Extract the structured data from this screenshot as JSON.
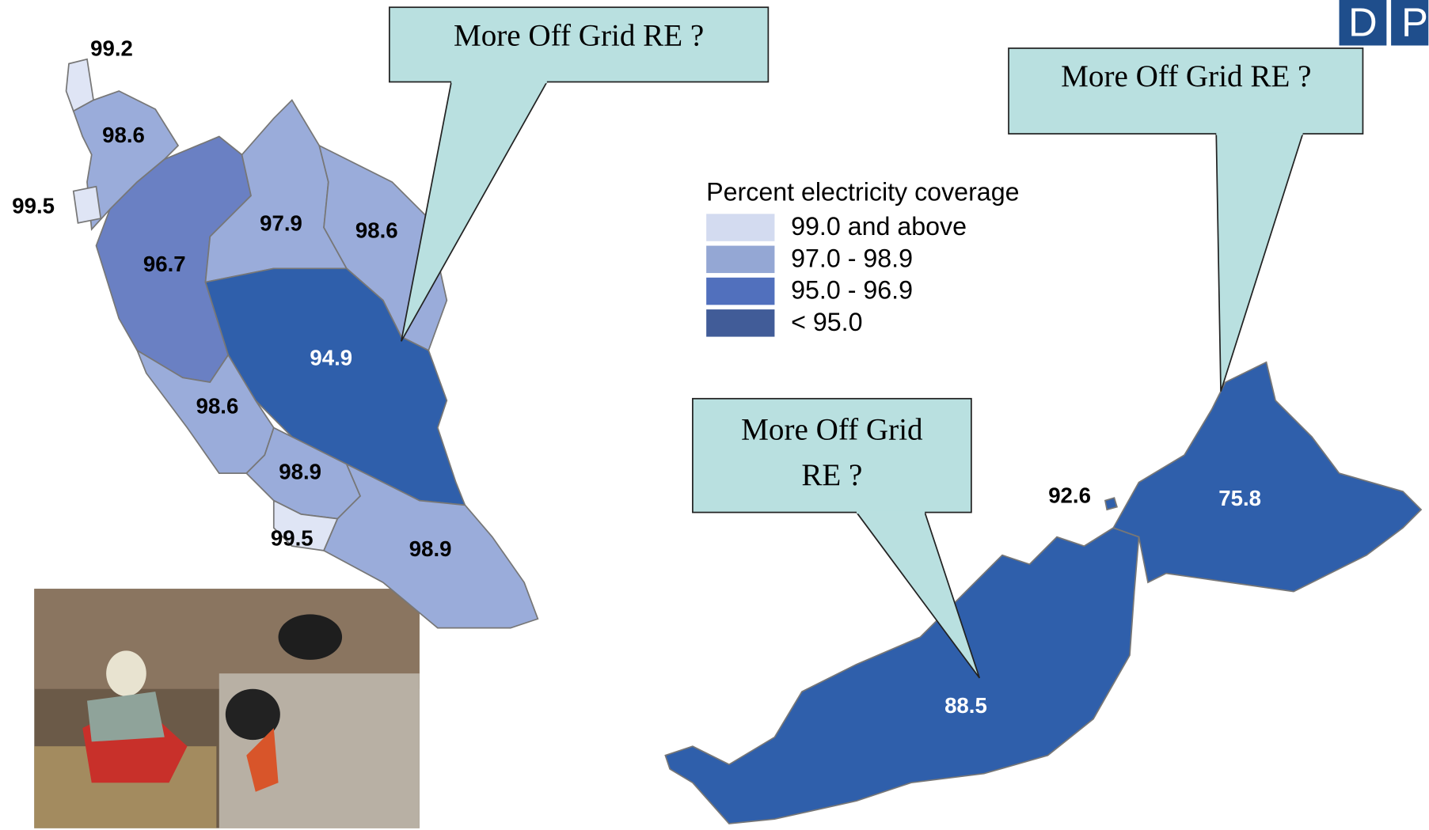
{
  "callouts": [
    "More Off Grid RE  ?",
    "More Off Grid RE  ?",
    "More Off Grid RE  ?"
  ],
  "legend": {
    "title": "Percent  electricity coverage",
    "items": [
      {
        "label": "99.0 and above",
        "color": "#d3dbf0"
      },
      {
        "label": "97.0 - 98.9",
        "color": "#94a7d4"
      },
      {
        "label": "95.0 - 96.9",
        "color": "#5170bd"
      },
      {
        "label": "< 95.0",
        "color": "#415c98"
      }
    ]
  },
  "logo": [
    "D",
    "P"
  ],
  "regions": [
    {
      "value": 99.2,
      "color": "#dfe5f5"
    },
    {
      "value": 98.6,
      "color": "#9aacda"
    },
    {
      "value": 99.5,
      "color": "#dfe5f5"
    },
    {
      "value": 96.7,
      "color": "#6a80c3"
    },
    {
      "value": 97.9,
      "color": "#9aacda"
    },
    {
      "value": 98.6,
      "color": "#9aacda"
    },
    {
      "value": 94.9,
      "color": "#2f5fab"
    },
    {
      "value": 98.6,
      "color": "#9aacda"
    },
    {
      "value": 98.9,
      "color": "#9aacda"
    },
    {
      "value": 99.5,
      "color": "#dfe5f5"
    },
    {
      "value": 98.9,
      "color": "#9aacda"
    },
    {
      "value": 92.6,
      "color": "#2f5fab"
    },
    {
      "value": 75.8,
      "color": "#2f5fab"
    },
    {
      "value": 88.5,
      "color": "#2f5fab"
    }
  ]
}
